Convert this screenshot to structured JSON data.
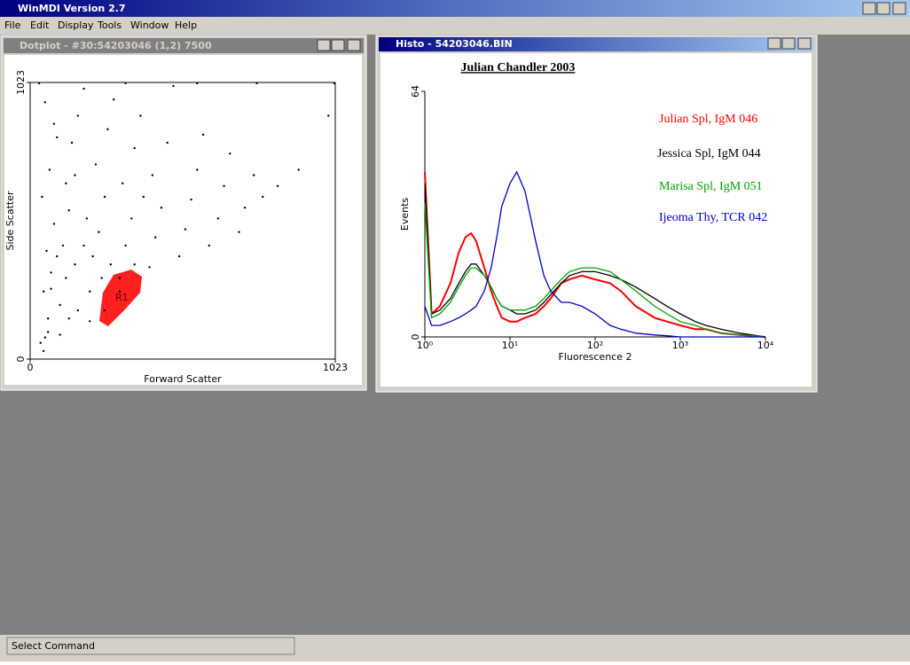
{
  "app": {
    "title": "WinMDI Version 2.7",
    "menu": [
      "File",
      "Edit",
      "Display",
      "Tools",
      "Window",
      "Help"
    ],
    "status": "Select Command"
  },
  "windows": [
    {
      "title": "Dotplot - #30:54203046 (1,2) 7500",
      "chart_data": {
        "type": "scatter",
        "xlabel": "Forward Scatter",
        "ylabel": "Side Scatter",
        "xlim": [
          0,
          1023
        ],
        "ylim": [
          0,
          1023
        ],
        "xticks": [
          0,
          1023
        ],
        "yticks": [
          0,
          1023
        ],
        "color": "#000000",
        "gate": {
          "label": "R1",
          "color": "#ff0000"
        },
        "x": [
          50,
          60,
          45,
          70,
          55,
          80,
          40,
          65,
          90,
          50,
          100,
          120,
          110,
          130,
          150,
          140,
          160,
          180,
          200,
          210,
          230,
          250,
          220,
          260,
          280,
          300,
          320,
          340,
          310,
          350,
          370,
          400,
          420,
          440,
          410,
          460,
          480,
          500,
          520,
          540,
          560,
          580,
          600,
          630,
          650,
          670,
          700,
          720,
          750,
          780,
          830,
          900,
          1000,
          150,
          180,
          90,
          70,
          130,
          160,
          240,
          270,
          190,
          350,
          380,
          60,
          35,
          45,
          100,
          250,
          200,
          300,
          120,
          80,
          30,
          560,
          760,
          1020,
          320
        ],
        "y": [
          80,
          150,
          250,
          320,
          400,
          500,
          600,
          700,
          820,
          950,
          200,
          300,
          420,
          550,
          680,
          800,
          900,
          1000,
          250,
          380,
          470,
          600,
          720,
          850,
          960,
          300,
          420,
          520,
          650,
          780,
          900,
          340,
          450,
          560,
          680,
          800,
          1010,
          380,
          480,
          590,
          700,
          830,
          420,
          520,
          640,
          760,
          470,
          560,
          680,
          600,
          640,
          700,
          900,
          350,
          420,
          380,
          260,
          150,
          180,
          300,
          350,
          520,
          350,
          600,
          100,
          60,
          30,
          90,
          180,
          140,
          250,
          650,
          870,
          1020,
          1020,
          1020,
          1020,
          1020
        ]
      }
    },
    {
      "title": "Histo - 54203046.BIN",
      "chart_data": {
        "type": "line",
        "title": "Julian Chandler 2003",
        "xlabel": "Fluorescence 2",
        "ylabel": "Events",
        "xlog": true,
        "xlim": [
          1,
          10000
        ],
        "ylim": [
          0,
          64
        ],
        "xticks": [
          {
            "value": 1,
            "label": "10⁰"
          },
          {
            "value": 10,
            "label": "10¹"
          },
          {
            "value": 100,
            "label": "10²"
          },
          {
            "value": 1000,
            "label": "10³"
          },
          {
            "value": 10000,
            "label": "10⁴"
          }
        ],
        "yticks": [
          0,
          64
        ],
        "x": [
          1,
          1.2,
          1.5,
          2,
          2.5,
          3,
          3.5,
          4,
          5,
          6,
          7,
          8,
          10,
          12,
          15,
          20,
          25,
          30,
          40,
          50,
          70,
          100,
          150,
          200,
          300,
          500,
          700,
          1000,
          1500,
          2000,
          3000,
          5000,
          7000,
          10000
        ],
        "series": [
          {
            "name": "Julian Spl, IgM 046",
            "color": "#ff0000",
            "values": [
              43,
              6,
              8,
              14,
              22,
              26,
              27,
              25,
              18,
              12,
              8,
              5,
              4,
              4,
              5,
              6,
              8,
              10,
              14,
              15,
              16,
              15,
              14,
              12,
              8,
              5,
              4,
              3,
              2,
              2,
              1,
              0.5,
              0.3,
              0
            ]
          },
          {
            "name": "Jessica Spl, IgM 044",
            "color": "#000000",
            "values": [
              40,
              6,
              7,
              10,
              14,
              17,
              19,
              19,
              16,
              13,
              10,
              8,
              7,
              6,
              6,
              7,
              9,
              11,
              14,
              16,
              17,
              17,
              16,
              15,
              13,
              10,
              8,
              6,
              4,
              3,
              2,
              1,
              0.5,
              0
            ]
          },
          {
            "name": "Marisa Spl, IgM 051",
            "color": "#00a000",
            "values": [
              35,
              5,
              6,
              9,
              13,
              16,
              18,
              18,
              16,
              13,
              10,
              8,
              7,
              7,
              7,
              8,
              10,
              12,
              15,
              17,
              18,
              18,
              17,
              15,
              12,
              8,
              6,
              4,
              3,
              2,
              1,
              0.5,
              0.3,
              0
            ]
          },
          {
            "name": "Ijeoma Thy, TCR 042",
            "color": "#0000c0",
            "values": [
              8,
              3,
              3,
              4,
              5,
              6,
              7,
              8,
              12,
              18,
              26,
              34,
              40,
              43,
              38,
              25,
              16,
              12,
              9,
              9,
              8,
              6,
              3,
              2,
              1,
              0.5,
              0.3,
              0,
              0,
              0,
              0,
              0,
              0,
              0
            ]
          }
        ]
      }
    }
  ]
}
